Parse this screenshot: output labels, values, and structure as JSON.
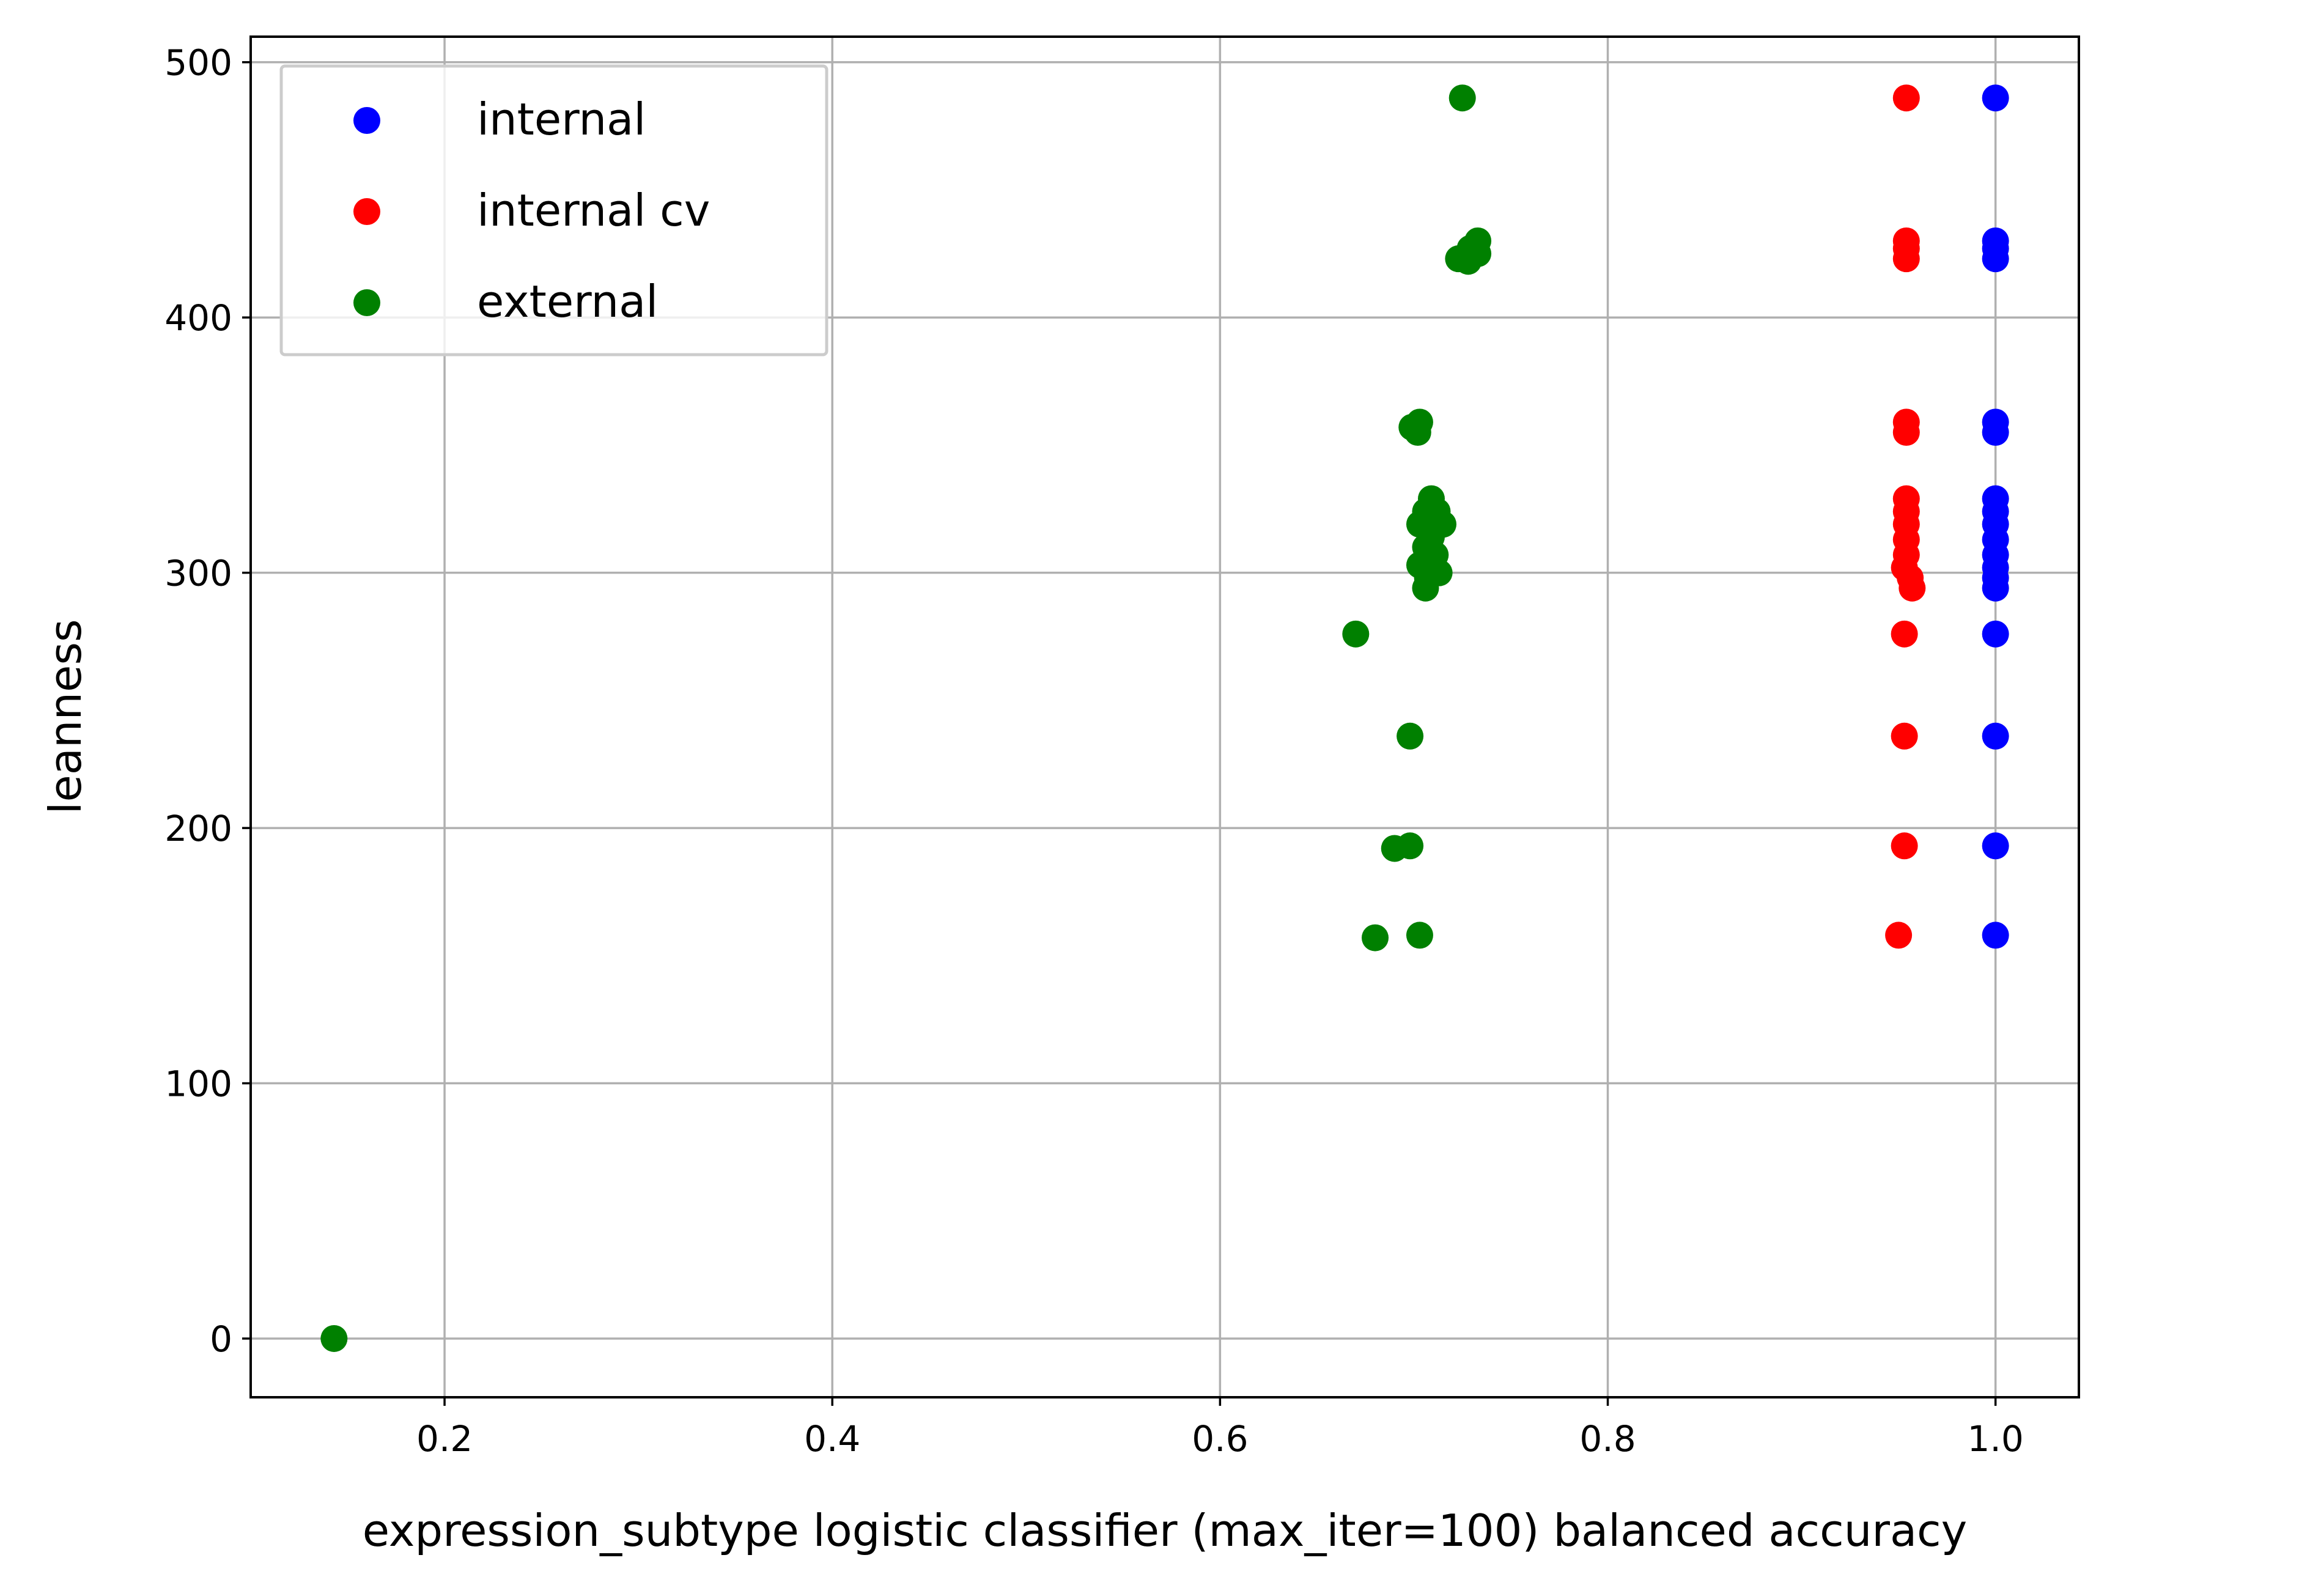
{
  "chart_data": {
    "type": "scatter",
    "xlabel": "expression_subtype logistic classifier (max_iter=100) balanced accuracy",
    "ylabel": "leanness",
    "xlim": [
      0.1,
      1.043
    ],
    "ylim": [
      -23,
      510
    ],
    "xticks": [
      0.2,
      0.4,
      0.6,
      0.8,
      1.0
    ],
    "xtick_labels": [
      "0.2",
      "0.4",
      "0.6",
      "0.8",
      "1.0"
    ],
    "yticks": [
      0,
      100,
      200,
      300,
      400,
      500
    ],
    "ytick_labels": [
      "0",
      "100",
      "200",
      "300",
      "400",
      "500"
    ],
    "grid": true,
    "legend_position": "top-left",
    "series": [
      {
        "name": "internal",
        "color": "#0000ff",
        "points": [
          [
            1.0,
            486
          ],
          [
            1.0,
            430
          ],
          [
            1.0,
            427
          ],
          [
            1.0,
            423
          ],
          [
            1.0,
            359
          ],
          [
            1.0,
            355
          ],
          [
            1.0,
            329
          ],
          [
            1.0,
            324
          ],
          [
            1.0,
            319
          ],
          [
            1.0,
            313
          ],
          [
            1.0,
            307
          ],
          [
            1.0,
            302
          ],
          [
            1.0,
            298
          ],
          [
            1.0,
            294
          ],
          [
            1.0,
            276
          ],
          [
            1.0,
            236
          ],
          [
            1.0,
            193
          ],
          [
            1.0,
            158
          ]
        ]
      },
      {
        "name": "internal cv",
        "color": "#ff0000",
        "points": [
          [
            0.954,
            486
          ],
          [
            0.954,
            430
          ],
          [
            0.954,
            427
          ],
          [
            0.954,
            423
          ],
          [
            0.954,
            359
          ],
          [
            0.954,
            355
          ],
          [
            0.954,
            329
          ],
          [
            0.954,
            324
          ],
          [
            0.954,
            319
          ],
          [
            0.954,
            313
          ],
          [
            0.954,
            307
          ],
          [
            0.953,
            302
          ],
          [
            0.956,
            298
          ],
          [
            0.957,
            294
          ],
          [
            0.953,
            276
          ],
          [
            0.953,
            236
          ],
          [
            0.953,
            193
          ],
          [
            0.95,
            158
          ]
        ]
      },
      {
        "name": "external",
        "color": "#008000",
        "points": [
          [
            0.725,
            486
          ],
          [
            0.733,
            430
          ],
          [
            0.729,
            427
          ],
          [
            0.733,
            425
          ],
          [
            0.723,
            423
          ],
          [
            0.728,
            422
          ],
          [
            0.703,
            359
          ],
          [
            0.699,
            357
          ],
          [
            0.702,
            355
          ],
          [
            0.709,
            329
          ],
          [
            0.712,
            324
          ],
          [
            0.706,
            324
          ],
          [
            0.703,
            319
          ],
          [
            0.715,
            319
          ],
          [
            0.709,
            314
          ],
          [
            0.706,
            310
          ],
          [
            0.711,
            307
          ],
          [
            0.703,
            303
          ],
          [
            0.713,
            300
          ],
          [
            0.707,
            298
          ],
          [
            0.706,
            294
          ],
          [
            0.67,
            276
          ],
          [
            0.698,
            236
          ],
          [
            0.698,
            193
          ],
          [
            0.69,
            192
          ],
          [
            0.703,
            158
          ],
          [
            0.68,
            157
          ],
          [
            0.143,
            0
          ]
        ]
      }
    ]
  }
}
